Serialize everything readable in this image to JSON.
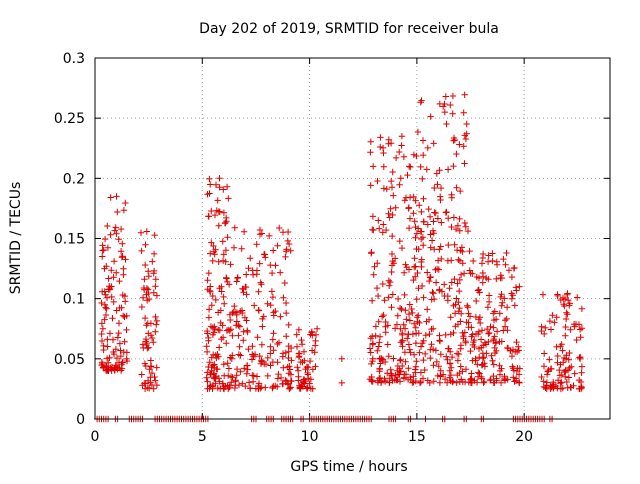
{
  "chart_data": {
    "type": "scatter",
    "title": "Day 202 of 2019, SRMTID for receiver bula",
    "xlabel": "GPS time / hours",
    "ylabel": "SRMTID / TECUs",
    "xlim": [
      0,
      24
    ],
    "ylim": [
      0,
      0.3
    ],
    "xticks": [
      0,
      5,
      10,
      15,
      20
    ],
    "xtick_labels": [
      "0",
      "5",
      "10",
      "15",
      "20"
    ],
    "yticks": [
      0,
      0.05,
      0.1,
      0.15,
      0.2,
      0.25,
      0.3
    ],
    "ytick_labels": [
      "0",
      "0.05",
      "0.1",
      "0.15",
      "0.2",
      "0.25",
      "0.3"
    ],
    "grid": true,
    "marker": "plus",
    "color": "#e00000",
    "clusters": [
      {
        "x0": 0.3,
        "x1": 1.5,
        "y": [
          0.04,
          0.185
        ],
        "n": 120
      },
      {
        "x0": 2.1,
        "x1": 2.9,
        "y": [
          0.025,
          0.165
        ],
        "n": 70
      },
      {
        "x0": 5.2,
        "x1": 6.3,
        "y": [
          0.025,
          0.2
        ],
        "n": 140
      },
      {
        "x0": 6.3,
        "x1": 9.2,
        "y": [
          0.025,
          0.16
        ],
        "n": 190
      },
      {
        "x0": 9.4,
        "x1": 10.3,
        "y": [
          0.025,
          0.075
        ],
        "n": 55
      },
      {
        "x0": 12.8,
        "x1": 14.8,
        "y": [
          0.03,
          0.235
        ],
        "n": 190
      },
      {
        "x0": 14.8,
        "x1": 17.4,
        "y": [
          0.03,
          0.27
        ],
        "n": 260
      },
      {
        "x0": 17.4,
        "x1": 19.8,
        "y": [
          0.03,
          0.14
        ],
        "n": 180
      },
      {
        "x0": 20.8,
        "x1": 22.7,
        "y": [
          0.025,
          0.105
        ],
        "n": 110
      }
    ],
    "singles": [
      {
        "x": 10.3,
        "y": 0.07
      },
      {
        "x": 10.35,
        "y": 0.075
      },
      {
        "x": 11.5,
        "y": 0.05
      },
      {
        "x": 11.5,
        "y": 0.03
      },
      {
        "x": 16.35,
        "y": 0.268
      },
      {
        "x": 16.3,
        "y": 0.255
      },
      {
        "x": 14.3,
        "y": 0.235
      },
      {
        "x": 14.25,
        "y": 0.2
      },
      {
        "x": 5.8,
        "y": 0.2
      },
      {
        "x": 1.0,
        "y": 0.185
      }
    ],
    "zero_segments": [
      [
        0.1,
        0.65
      ],
      [
        0.95,
        1.1
      ],
      [
        1.6,
        2.3
      ],
      [
        2.8,
        5.3
      ],
      [
        7.3,
        7.6
      ],
      [
        8.0,
        8.4
      ],
      [
        8.7,
        9.3
      ],
      [
        9.6,
        9.8
      ],
      [
        10.0,
        12.9
      ],
      [
        13.7,
        14.1
      ],
      [
        14.6,
        14.75
      ],
      [
        15.4,
        15.5
      ],
      [
        16.2,
        16.4
      ],
      [
        17.2,
        17.4
      ],
      [
        18.0,
        18.2
      ],
      [
        19.5,
        21.0
      ],
      [
        21.2,
        21.4
      ]
    ]
  }
}
